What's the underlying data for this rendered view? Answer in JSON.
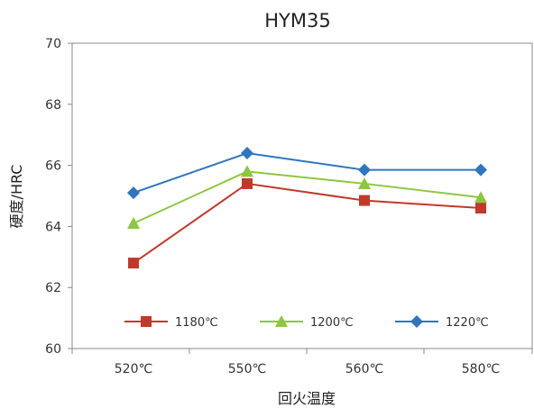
{
  "chart_data": {
    "type": "line",
    "title": "HYM35",
    "xlabel": "回火温度",
    "ylabel": "硬度/HRC",
    "categories": [
      "520℃",
      "550℃",
      "560℃",
      "580℃"
    ],
    "ylim": [
      60,
      70
    ],
    "yticks": [
      60,
      62,
      64,
      66,
      68,
      70
    ],
    "grid": false,
    "legend_position": "bottom-inside",
    "series": [
      {
        "name": "1180℃",
        "values": [
          62.8,
          65.4,
          64.85,
          64.6
        ],
        "color": "#c0392b",
        "marker": "square"
      },
      {
        "name": "1200℃",
        "values": [
          64.1,
          65.8,
          65.4,
          64.95
        ],
        "color": "#8dc63f",
        "marker": "triangle"
      },
      {
        "name": "1220℃",
        "values": [
          65.1,
          66.4,
          65.85,
          65.85
        ],
        "color": "#2f75c0",
        "marker": "diamond"
      }
    ]
  }
}
